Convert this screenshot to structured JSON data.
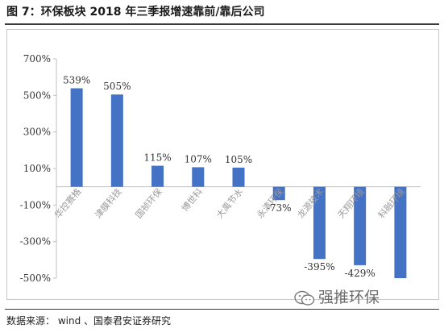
{
  "figure": {
    "title": "图 7：环保板块 2018 年三季报增速靠前/靠后公司",
    "source": "数据来源： wind 、国泰君安证券研究",
    "watermark": "强推环保"
  },
  "colors": {
    "bar": "#4472C4",
    "axis": "#bfbfbf",
    "label": "#333333",
    "category": "#9a9a9a"
  },
  "chart_data": {
    "type": "bar",
    "title": "",
    "xlabel": "",
    "ylabel": "",
    "ylim": [
      -500,
      700
    ],
    "yticks": [
      -500,
      -300,
      -100,
      100,
      300,
      500,
      700
    ],
    "ytick_labels": [
      "-500%",
      "-300%",
      "-100%",
      "100%",
      "300%",
      "500%",
      "700%"
    ],
    "grid": false,
    "legend": "none",
    "categories": [
      "华控赛格",
      "津膜科技",
      "国祯环保",
      "博世科",
      "大禹节水",
      "永清环保",
      "龙源技术",
      "天翔环境",
      "科融环境"
    ],
    "values": [
      539,
      505,
      115,
      107,
      105,
      -73,
      -395,
      -429,
      -500
    ],
    "data_labels": [
      "539%",
      "505%",
      "115%",
      "107%",
      "105%",
      "-73%",
      "-395%",
      "-429%",
      ""
    ]
  }
}
